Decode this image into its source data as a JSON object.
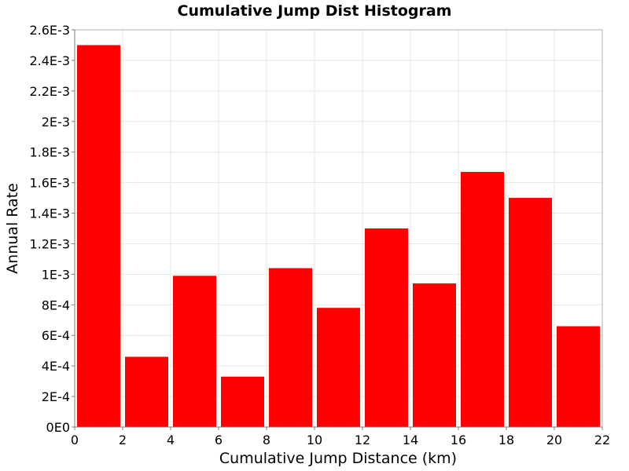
{
  "chart_data": {
    "type": "bar",
    "title": "Cumulative Jump Dist Histogram",
    "xlabel": "Cumulative Jump Distance (km)",
    "ylabel": "Annual Rate",
    "xlim": [
      0,
      22
    ],
    "ylim": [
      0,
      0.0026
    ],
    "grid": true,
    "bin_width": 2,
    "x": [
      1,
      3,
      5,
      7,
      9,
      11,
      13,
      15,
      17,
      19,
      21
    ],
    "values": [
      0.0025,
      0.00046,
      0.00099,
      0.00033,
      0.00104,
      0.00078,
      0.0013,
      0.00094,
      0.00167,
      0.0015,
      0.00066
    ],
    "x_ticks": [
      {
        "value": 0,
        "label": "0"
      },
      {
        "value": 2,
        "label": "2"
      },
      {
        "value": 4,
        "label": "4"
      },
      {
        "value": 6,
        "label": "6"
      },
      {
        "value": 8,
        "label": "8"
      },
      {
        "value": 10,
        "label": "10"
      },
      {
        "value": 12,
        "label": "12"
      },
      {
        "value": 14,
        "label": "14"
      },
      {
        "value": 16,
        "label": "16"
      },
      {
        "value": 18,
        "label": "18"
      },
      {
        "value": 20,
        "label": "20"
      },
      {
        "value": 22,
        "label": "22"
      }
    ],
    "y_ticks": [
      {
        "value": 0,
        "label": "0E0"
      },
      {
        "value": 0.0002,
        "label": "2E-4"
      },
      {
        "value": 0.0004,
        "label": "4E-4"
      },
      {
        "value": 0.0006,
        "label": "6E-4"
      },
      {
        "value": 0.0008,
        "label": "8E-4"
      },
      {
        "value": 0.001,
        "label": "1E-3"
      },
      {
        "value": 0.0012,
        "label": "1.2E-3"
      },
      {
        "value": 0.0014,
        "label": "1.4E-3"
      },
      {
        "value": 0.0016,
        "label": "1.6E-3"
      },
      {
        "value": 0.0018,
        "label": "1.8E-3"
      },
      {
        "value": 0.002,
        "label": "2E-3"
      },
      {
        "value": 0.0022,
        "label": "2.2E-3"
      },
      {
        "value": 0.0024,
        "label": "2.4E-3"
      },
      {
        "value": 0.0026,
        "label": "2.6E-3"
      }
    ],
    "bar_color": "#ff0000"
  }
}
